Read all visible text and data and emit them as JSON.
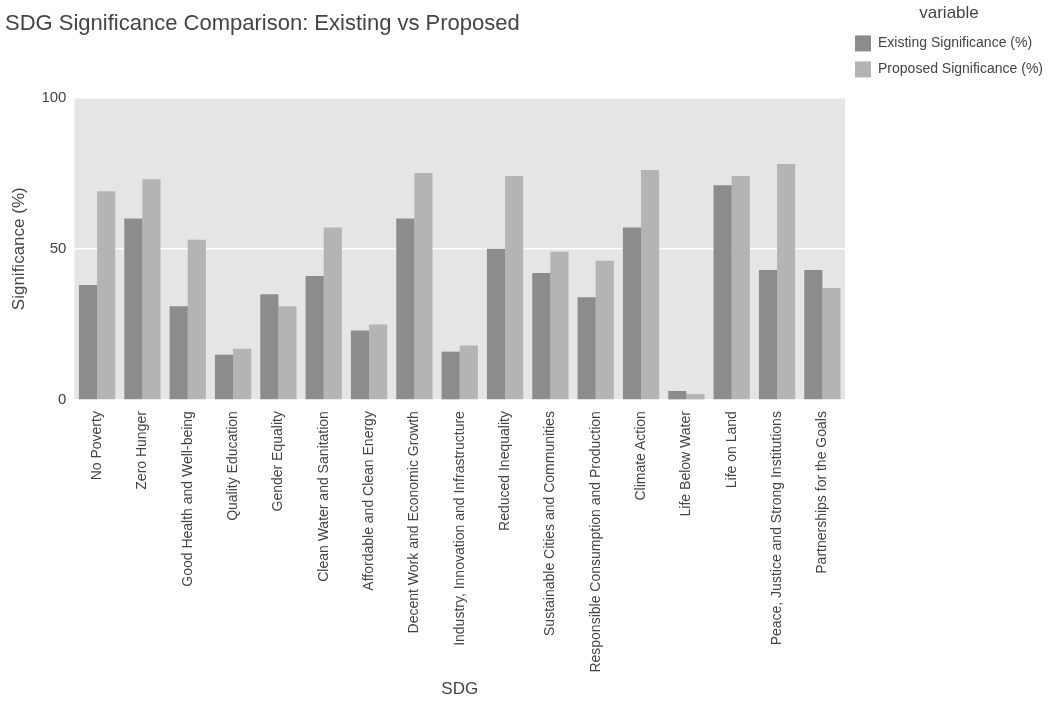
{
  "chart_data": {
    "type": "bar",
    "title": "SDG Significance Comparison: Existing vs Proposed",
    "xlabel": "SDG",
    "ylabel": "Significance (%)",
    "legend_title": "variable",
    "categories": [
      "No Poverty",
      "Zero Hunger",
      "Good Health and Well-being",
      "Quality Education",
      "Gender Equality",
      "Clean Water and Sanitation",
      "Affordable and Clean Energy",
      "Decent Work and Economic Growth",
      "Industry, Innovation and Infrastructure",
      "Reduced Inequality",
      "Sustainable Cities and Communities",
      "Responsible Consumption and Production",
      "Climate Action",
      "Life Below Water",
      "Life on Land",
      "Peace, Justice and Strong Institutions",
      "Partnerships for the Goals"
    ],
    "series": [
      {
        "name": "Existing Significance (%)",
        "color": "#8c8c8c",
        "values": [
          38,
          60,
          31,
          15,
          35,
          41,
          23,
          60,
          16,
          50,
          42,
          34,
          57,
          3,
          71,
          43,
          43
        ]
      },
      {
        "name": "Proposed Significance (%)",
        "color": "#b4b4b4",
        "values": [
          69,
          73,
          53,
          17,
          31,
          57,
          25,
          75,
          18,
          74,
          49,
          46,
          76,
          2,
          74,
          78,
          37
        ]
      }
    ],
    "ylim": [
      0,
      100
    ],
    "yticks": [
      0,
      50,
      100
    ],
    "grid": "y",
    "legend": "right"
  }
}
